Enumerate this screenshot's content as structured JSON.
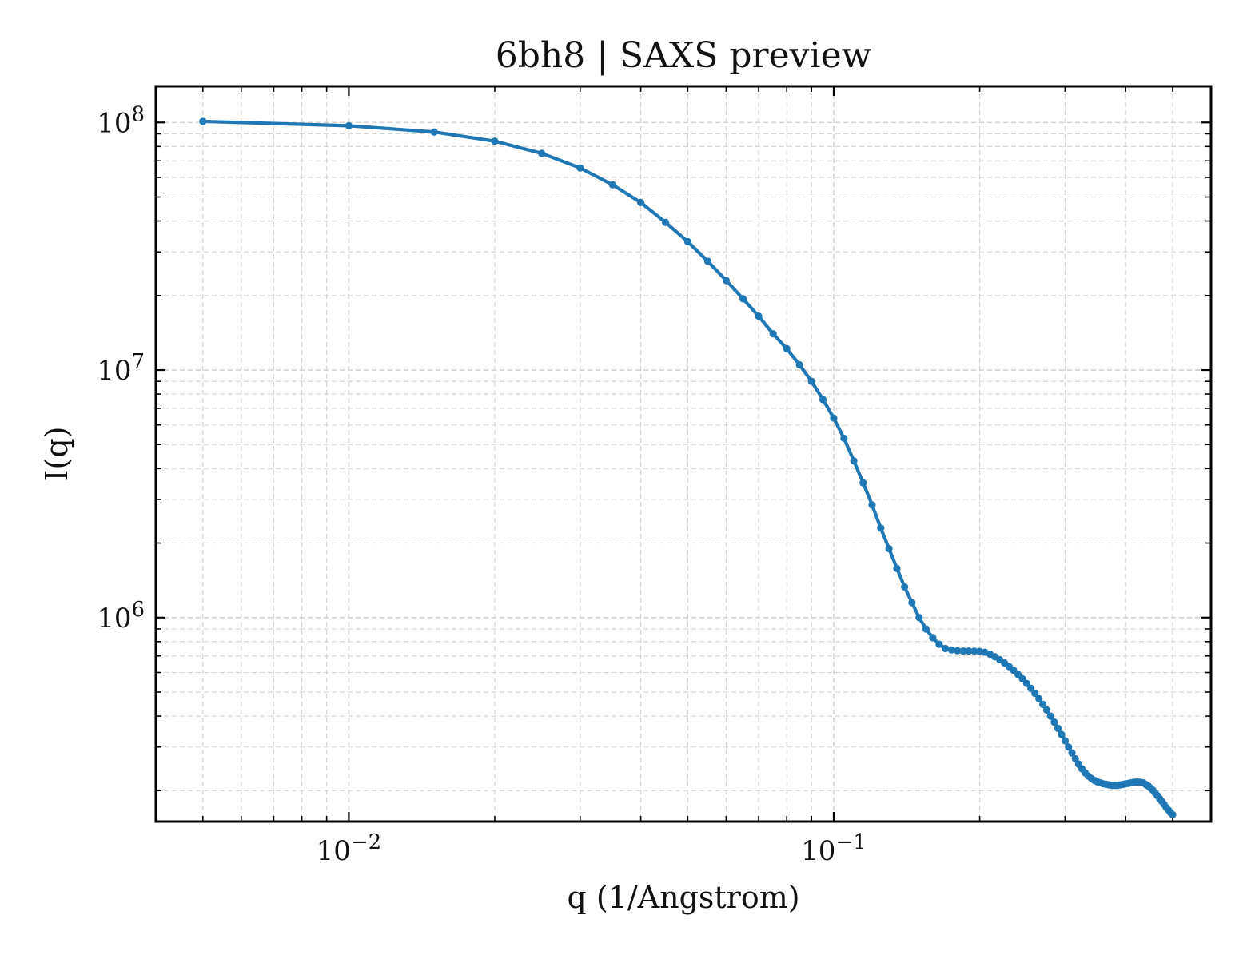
{
  "chart_data": {
    "type": "line",
    "title": "6bh8 | SAXS preview",
    "xlabel": "q (1/Angstrom)",
    "ylabel": "I(q)",
    "xscale": "log",
    "yscale": "log",
    "xlim": [
      0.004,
      0.6
    ],
    "ylim": [
      150000,
      140000000
    ],
    "grid": true,
    "x_ticks": [
      {
        "value": 0.01,
        "base": "10",
        "exp": "−2"
      },
      {
        "value": 0.1,
        "base": "10",
        "exp": "−1"
      }
    ],
    "y_ticks": [
      {
        "value": 1000000,
        "base": "10",
        "exp": "6"
      },
      {
        "value": 10000000,
        "base": "10",
        "exp": "7"
      },
      {
        "value": 100000000,
        "base": "10",
        "exp": "8"
      }
    ],
    "colors": {
      "series": "#1f77b4",
      "grid": "#d4d4d4",
      "axes": "#000000"
    },
    "series": [
      {
        "x": [
          0.005,
          0.01,
          0.015,
          0.02,
          0.025,
          0.03,
          0.035,
          0.04,
          0.045,
          0.05,
          0.055,
          0.06,
          0.065,
          0.07,
          0.075,
          0.08,
          0.085,
          0.09,
          0.095,
          0.1,
          0.105,
          0.11,
          0.115,
          0.12,
          0.125,
          0.13,
          0.135,
          0.14,
          0.145,
          0.15,
          0.155,
          0.16,
          0.165,
          0.17,
          0.175,
          0.18,
          0.185,
          0.19,
          0.195,
          0.2,
          0.205,
          0.21,
          0.215,
          0.22,
          0.225,
          0.23,
          0.235,
          0.24,
          0.245,
          0.25,
          0.255,
          0.26,
          0.265,
          0.27,
          0.275,
          0.28,
          0.285,
          0.29,
          0.295,
          0.3,
          0.305,
          0.31,
          0.315,
          0.32,
          0.325,
          0.33,
          0.335,
          0.34,
          0.345,
          0.35,
          0.355,
          0.36,
          0.365,
          0.37,
          0.375,
          0.38,
          0.385,
          0.39,
          0.395,
          0.4,
          0.405,
          0.41,
          0.415,
          0.42,
          0.425,
          0.43,
          0.435,
          0.44,
          0.445,
          0.45,
          0.455,
          0.46,
          0.465,
          0.47,
          0.475,
          0.48,
          0.485,
          0.49,
          0.495,
          0.5
        ],
        "y": [
          101000000,
          97000000,
          91500000,
          84000000,
          75000000,
          65500000,
          56000000,
          47500000,
          39500000,
          33000000,
          27500000,
          23000000,
          19400000,
          16500000,
          14000000,
          12200000,
          10500000,
          9000000,
          7600000,
          6400000,
          5300000,
          4300000,
          3500000,
          2850000,
          2300000,
          1900000,
          1580000,
          1330000,
          1150000,
          1000000,
          900000,
          830000,
          780000,
          750000,
          740000,
          735000,
          733000,
          733000,
          732000,
          730000,
          725000,
          712000,
          695000,
          676000,
          656000,
          634000,
          612000,
          589000,
          566000,
          542000,
          518000,
          494000,
          470000,
          446000,
          423000,
          400000,
          378000,
          357000,
          337000,
          318000,
          300000,
          284000,
          269000,
          256000,
          245000,
          236000,
          229000,
          224000,
          220000,
          217000,
          215000,
          213000,
          212000,
          211000,
          210000,
          210000,
          210000,
          211000,
          212000,
          213000,
          214000,
          215000,
          216000,
          216500,
          216500,
          216000,
          215000,
          212000,
          209000,
          205000,
          201000,
          196000,
          191000,
          186000,
          181000,
          176000,
          171000,
          167000,
          163000,
          160000
        ]
      }
    ]
  }
}
